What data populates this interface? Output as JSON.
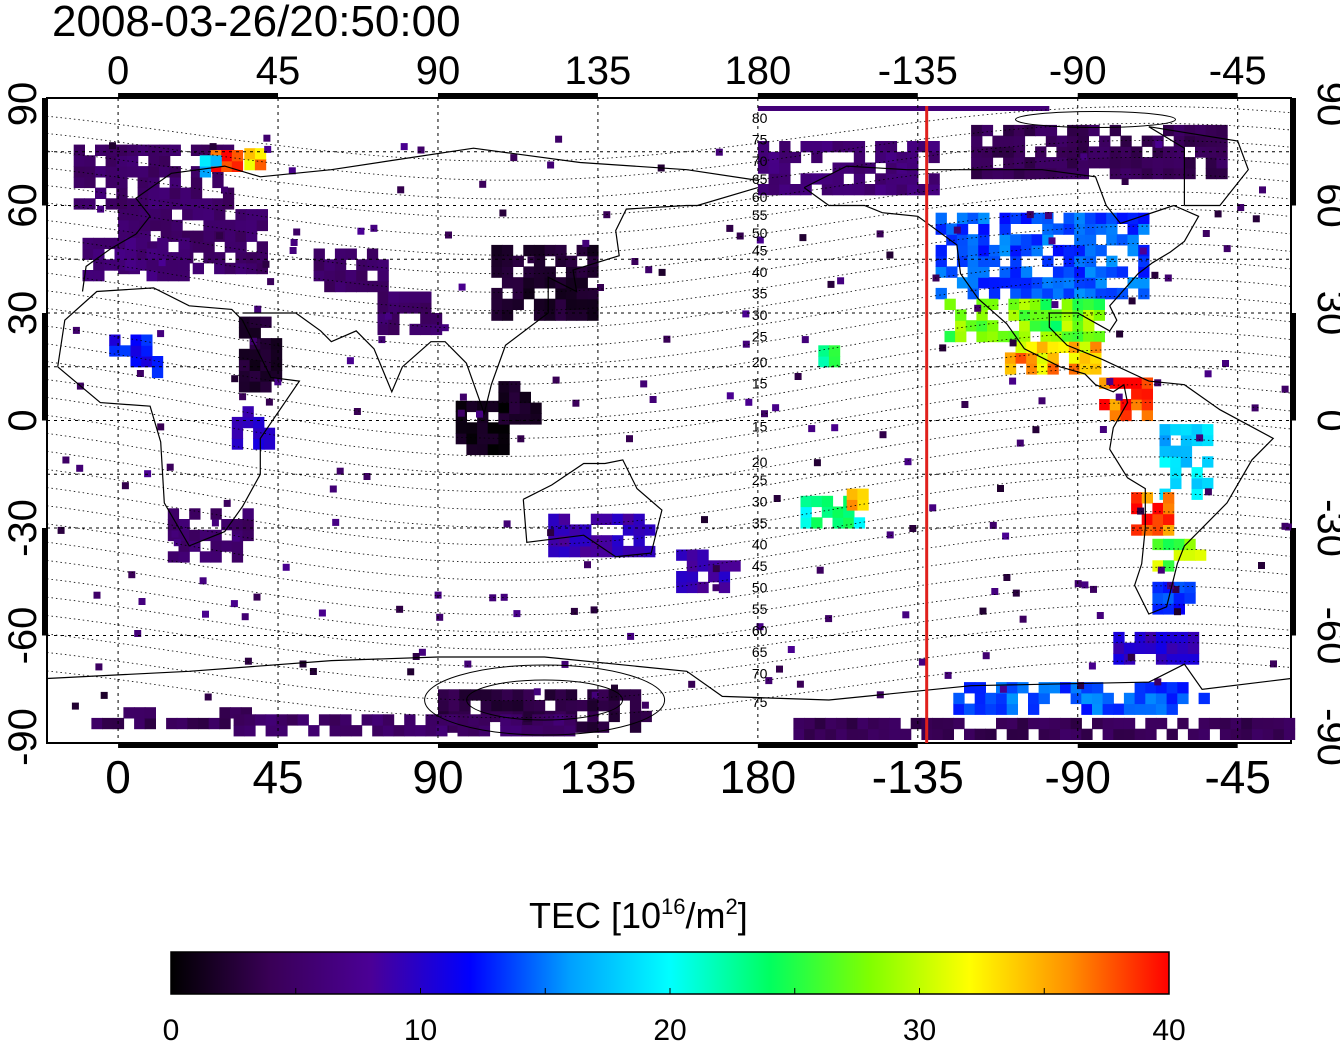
{
  "chart_data": {
    "type": "heatmap",
    "title": "2008-03-26/20:50:00",
    "projection": "equirectangular",
    "x_axis": {
      "range_deg_east": [
        -20,
        330
      ],
      "top_ticks": [
        {
          "lon": 0,
          "label": "0"
        },
        {
          "lon": 45,
          "label": "45"
        },
        {
          "lon": 90,
          "label": "90"
        },
        {
          "lon": 135,
          "label": "135"
        },
        {
          "lon": 180,
          "label": "180"
        },
        {
          "lon": 225,
          "label": "-135"
        },
        {
          "lon": 270,
          "label": "-90"
        },
        {
          "lon": 315,
          "label": "-45"
        }
      ],
      "bottom_ticks": [
        {
          "lon": 0,
          "label": "0"
        },
        {
          "lon": 45,
          "label": "45"
        },
        {
          "lon": 90,
          "label": "90"
        },
        {
          "lon": 135,
          "label": "135"
        },
        {
          "lon": 180,
          "label": "180"
        },
        {
          "lon": 225,
          "label": "-135"
        },
        {
          "lon": 270,
          "label": "-90"
        },
        {
          "lon": 315,
          "label": "-45"
        }
      ]
    },
    "y_axis": {
      "range_deg": [
        -90,
        90
      ],
      "ticks": [
        {
          "lat": 90,
          "label": "90"
        },
        {
          "lat": 60,
          "label": "60"
        },
        {
          "lat": 30,
          "label": "30"
        },
        {
          "lat": 0,
          "label": "0"
        },
        {
          "lat": -30,
          "label": "-30"
        },
        {
          "lat": -60,
          "label": "-60"
        },
        {
          "lat": -90,
          "label": "-90"
        }
      ]
    },
    "grid": true,
    "terminator_line": {
      "lon_label": "-135",
      "lon_deg_east": 227.5,
      "color": "#e0201c"
    },
    "magnetic_latitude_labels": [
      "80",
      "75",
      "70",
      "65",
      "60",
      "55",
      "50",
      "45",
      "40",
      "35",
      "30",
      "25",
      "20",
      "15",
      "15",
      "20",
      "25",
      "30",
      "35",
      "40",
      "45",
      "50",
      "55",
      "60",
      "65",
      "70",
      "75"
    ],
    "colorbar": {
      "title_prefix": "TEC  [10",
      "title_sup": "16",
      "title_mid": "/m",
      "title_sup2": "2",
      "title_suffix": "]",
      "min": 0,
      "max": 40,
      "tick_labels": [
        "0",
        "10",
        "20",
        "30",
        "40"
      ],
      "minor_steps": 8,
      "colormap": [
        "#000000",
        "#3a0057",
        "#4b0096",
        "#0000ff",
        "#00a0ff",
        "#00ffff",
        "#00ff60",
        "#80ff00",
        "#ffff00",
        "#ff9000",
        "#ff0000"
      ]
    },
    "tec_regions": [
      {
        "lon": 10,
        "lat": 68,
        "w": 45,
        "h": 18,
        "v": 5
      },
      {
        "lon": 20,
        "lat": 50,
        "w": 40,
        "h": 18,
        "v": 5
      },
      {
        "lon": 5,
        "lat": 45,
        "w": 30,
        "h": 12,
        "v": 6
      },
      {
        "lon": 30,
        "lat": 72,
        "w": 8,
        "h": 5,
        "v": 38
      },
      {
        "lon": 38,
        "lat": 72,
        "w": 5,
        "h": 4,
        "v": 35
      },
      {
        "lon": 26,
        "lat": 70,
        "w": 6,
        "h": 4,
        "v": 18
      },
      {
        "lon": 65,
        "lat": 42,
        "w": 20,
        "h": 12,
        "v": 5
      },
      {
        "lon": 5,
        "lat": 17,
        "w": 15,
        "h": 10,
        "v": 12
      },
      {
        "lon": 40,
        "lat": 18,
        "w": 12,
        "h": 20,
        "v": 2
      },
      {
        "lon": 38,
        "lat": -2,
        "w": 12,
        "h": 12,
        "v": 10
      },
      {
        "lon": 25,
        "lat": -32,
        "w": 22,
        "h": 15,
        "v": 5
      },
      {
        "lon": 82,
        "lat": 30,
        "w": 18,
        "h": 12,
        "v": 5
      },
      {
        "lon": 120,
        "lat": 38,
        "w": 30,
        "h": 20,
        "v": 2
      },
      {
        "lon": 102,
        "lat": -2,
        "w": 14,
        "h": 15,
        "v": 1
      },
      {
        "lon": 112,
        "lat": 5,
        "w": 10,
        "h": 12,
        "v": 2
      },
      {
        "lon": 135,
        "lat": -32,
        "w": 28,
        "h": 12,
        "v": 9
      },
      {
        "lon": 165,
        "lat": -42,
        "w": 16,
        "h": 12,
        "v": 9
      },
      {
        "lon": 120,
        "lat": -82,
        "w": 60,
        "h": 10,
        "v": 3
      },
      {
        "lon": 15,
        "lat": -84,
        "w": 45,
        "h": 4,
        "v": 4
      },
      {
        "lon": 80,
        "lat": -86,
        "w": 95,
        "h": 4,
        "v": 5
      },
      {
        "lon": 205,
        "lat": 70,
        "w": 50,
        "h": 14,
        "v": 6
      },
      {
        "lon": 275,
        "lat": 75,
        "w": 70,
        "h": 15,
        "v": 4
      },
      {
        "lon": 260,
        "lat": 45,
        "w": 60,
        "h": 22,
        "v": 14
      },
      {
        "lon": 255,
        "lat": 28,
        "w": 45,
        "h": 12,
        "v": 27
      },
      {
        "lon": 262,
        "lat": 17,
        "w": 25,
        "h": 8,
        "v": 34
      },
      {
        "lon": 283,
        "lat": 5,
        "w": 14,
        "h": 10,
        "v": 39
      },
      {
        "lon": 300,
        "lat": -12,
        "w": 14,
        "h": 20,
        "v": 18
      },
      {
        "lon": 290,
        "lat": -27,
        "w": 10,
        "h": 10,
        "v": 38
      },
      {
        "lon": 298,
        "lat": -38,
        "w": 14,
        "h": 8,
        "v": 28
      },
      {
        "lon": 296,
        "lat": -50,
        "w": 10,
        "h": 8,
        "v": 13
      },
      {
        "lon": 292,
        "lat": -64,
        "w": 24,
        "h": 8,
        "v": 10
      },
      {
        "lon": 270,
        "lat": -78,
        "w": 70,
        "h": 8,
        "v": 14
      },
      {
        "lon": 260,
        "lat": -86,
        "w": 140,
        "h": 6,
        "v": 4
      },
      {
        "lon": 200,
        "lat": 18,
        "w": 6,
        "h": 6,
        "v": 24
      },
      {
        "lon": 200,
        "lat": -26,
        "w": 16,
        "h": 8,
        "v": 22
      },
      {
        "lon": 208,
        "lat": -22,
        "w": 6,
        "h": 6,
        "v": 33
      }
    ]
  }
}
